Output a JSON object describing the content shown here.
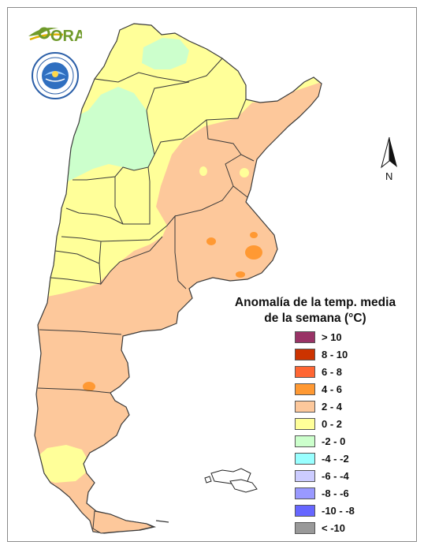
{
  "header": {
    "logo_text": "ORA",
    "seal_text": "SERVICIO METEOROLOGICO NACIONAL ARGENTINA"
  },
  "north_arrow": {
    "label": "N"
  },
  "legend": {
    "title_line1": "Anomalía de la temp. media",
    "title_line2": "de la semana (°C)",
    "items": [
      {
        "label": "> 10",
        "color": "#993366"
      },
      {
        "label": "8 - 10",
        "color": "#cc3300"
      },
      {
        "label": "6 - 8",
        "color": "#ff6633"
      },
      {
        "label": "4 - 6",
        "color": "#ff9933"
      },
      {
        "label": "2 - 4",
        "color": "#fdc89b"
      },
      {
        "label": "0 - 2",
        "color": "#ffff99"
      },
      {
        "label": "-2 - 0",
        "color": "#ccffcc"
      },
      {
        "label": "-4 - -2",
        "color": "#99ffff"
      },
      {
        "label": "-6 - -4",
        "color": "#ccccff"
      },
      {
        "label": "-8 - -6",
        "color": "#9999ff"
      },
      {
        "label": "-10 - -8",
        "color": "#6666ff"
      },
      {
        "label": "< -10",
        "color": "#999999"
      }
    ]
  },
  "map_colors": {
    "anomaly_2_4": "#fdc89b",
    "anomaly_0_2": "#ffff99",
    "anomaly_m2_0": "#ccffcc",
    "anomaly_4_6": "#ff9933",
    "border": "#3a3a3a"
  }
}
